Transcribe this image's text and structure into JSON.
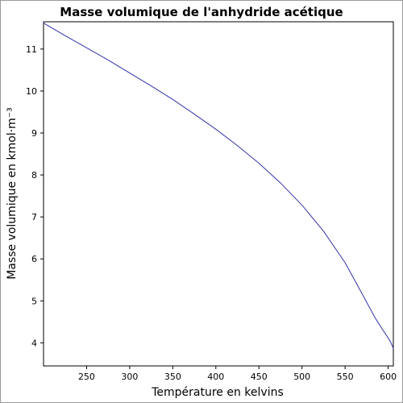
{
  "chart_data": {
    "type": "line",
    "title": "Masse volumique de l'anhydride acétique",
    "xlabel": "Température en kelvins",
    "ylabel": "Masse volumique en kmol·m⁻³",
    "xlim": [
      200,
      606
    ],
    "ylim": [
      3.45,
      11.65
    ],
    "xticks": [
      250,
      300,
      350,
      400,
      450,
      500,
      550,
      600
    ],
    "yticks": [
      4,
      5,
      6,
      7,
      8,
      9,
      10,
      11
    ],
    "grid": false,
    "series": [
      {
        "color": "#3333aa",
        "x": [
          200,
          225,
          250,
          275,
          300,
          325,
          350,
          375,
          400,
          425,
          450,
          475,
          500,
          525,
          550,
          570,
          585,
          595,
          600,
          603,
          605,
          606
        ],
        "y": [
          11.62,
          11.32,
          11.03,
          10.74,
          10.43,
          10.12,
          9.8,
          9.45,
          9.09,
          8.7,
          8.28,
          7.81,
          7.28,
          6.66,
          5.91,
          5.16,
          4.59,
          4.27,
          4.12,
          4.01,
          3.92,
          3.86
        ]
      }
    ]
  }
}
